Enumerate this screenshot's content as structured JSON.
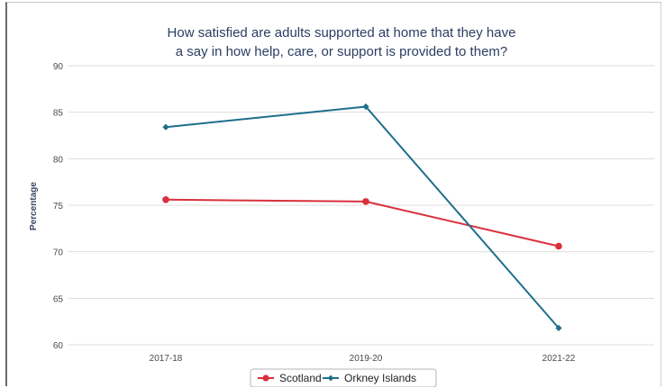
{
  "chart_data": {
    "type": "line",
    "title_lines": [
      "How satisfied are adults supported at home that they have",
      "a say in how help, care, or support is provided to them?"
    ],
    "xlabel": "",
    "ylabel": "Percentage",
    "categories": [
      "2017-18",
      "2019-20",
      "2021-22"
    ],
    "ylim": [
      60,
      90
    ],
    "yticks": [
      "60",
      "65",
      "70",
      "75",
      "80",
      "85",
      "90"
    ],
    "grid": true,
    "legend_position": "bottom",
    "series": [
      {
        "name": "Scotland",
        "color": "#d9303c",
        "marker": "circle",
        "values": [
          75.6,
          75.4,
          70.6
        ]
      },
      {
        "name": "Orkney Islands",
        "color": "#1f6f8b",
        "marker": "diamond",
        "values": [
          83.4,
          85.6,
          61.8
        ]
      }
    ]
  }
}
